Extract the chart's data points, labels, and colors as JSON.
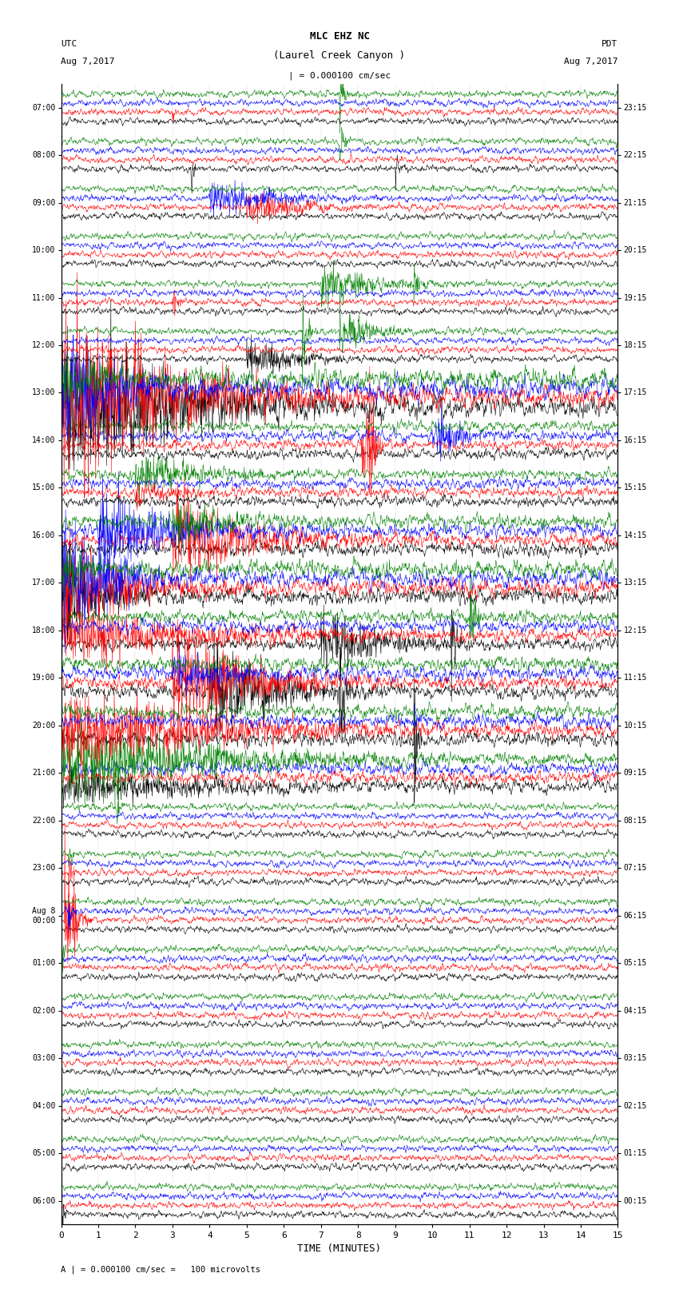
{
  "title_line1": "MLC EHZ NC",
  "title_line2": "(Laurel Creek Canyon )",
  "title_line3": "| = 0.000100 cm/sec",
  "utc_label": "UTC",
  "utc_date": "Aug 7,2017",
  "pdt_label": "PDT",
  "pdt_date": "Aug 7,2017",
  "xlabel": "TIME (MINUTES)",
  "footer": "A | = 0.000100 cm/sec =   100 microvolts",
  "left_times": [
    "07:00",
    "08:00",
    "09:00",
    "10:00",
    "11:00",
    "12:00",
    "13:00",
    "14:00",
    "15:00",
    "16:00",
    "17:00",
    "18:00",
    "19:00",
    "20:00",
    "21:00",
    "22:00",
    "23:00",
    "Aug 8\n00:00",
    "01:00",
    "02:00",
    "03:00",
    "04:00",
    "05:00",
    "06:00"
  ],
  "right_times": [
    "00:15",
    "01:15",
    "02:15",
    "03:15",
    "04:15",
    "05:15",
    "06:15",
    "07:15",
    "08:15",
    "09:15",
    "10:15",
    "11:15",
    "12:15",
    "13:15",
    "14:15",
    "15:15",
    "16:15",
    "17:15",
    "18:15",
    "19:15",
    "20:15",
    "21:15",
    "22:15",
    "23:15"
  ],
  "n_rows": 24,
  "traces_per_row": 4,
  "colors": [
    "black",
    "red",
    "blue",
    "green"
  ],
  "xlim": [
    0,
    15
  ],
  "bg_color": "white",
  "n_points": 1500,
  "seed": 42
}
